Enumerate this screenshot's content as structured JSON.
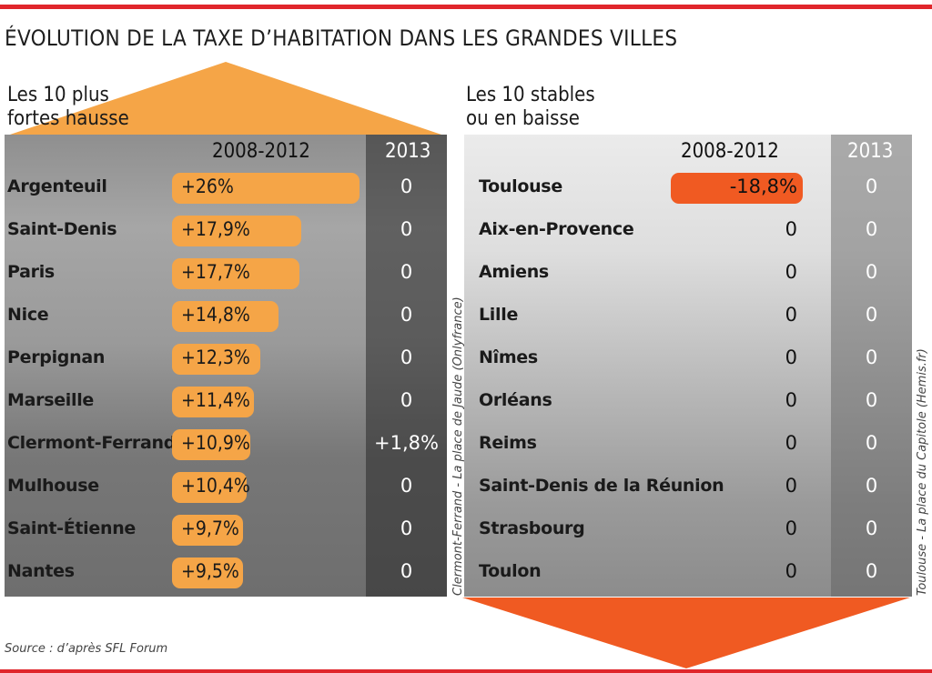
{
  "colors": {
    "accent_red": "#e0262b",
    "increase_orange": "#f5a547",
    "decrease_orange": "#f05a22"
  },
  "title": "ÉVOLUTION DE LA TAXE D’HABITATION DANS LES GRANDES VILLES",
  "source": "Source : d’après SFL Forum",
  "chart_data": [
    {
      "type": "bar",
      "title": "Les 10 plus fortes hausse",
      "columns": [
        "2008-2012",
        "2013"
      ],
      "categories": [
        "Argenteuil",
        "Saint-Denis",
        "Paris",
        "Nice",
        "Perpignan",
        "Marseille",
        "Clermont-Ferrand",
        "Mulhouse",
        "Saint-Étienne",
        "Nantes"
      ],
      "series": [
        {
          "name": "2008-2012",
          "values": [
            26,
            17.9,
            17.7,
            14.8,
            12.3,
            11.4,
            10.9,
            10.4,
            9.7,
            9.5
          ],
          "labels": [
            "+26%",
            "+17,9%",
            "+17,7%",
            "+14,8%",
            "+12,3%",
            "+11,4%",
            "+10,9%",
            "+10,4%",
            "+9,7%",
            "+9,5%"
          ]
        },
        {
          "name": "2013",
          "values": [
            0,
            0,
            0,
            0,
            0,
            0,
            1.8,
            0,
            0,
            0
          ],
          "labels": [
            "0",
            "0",
            "0",
            "0",
            "0",
            "0",
            "+1,8%",
            "0",
            "0",
            "0"
          ]
        }
      ],
      "unit": "%",
      "photo_credit": "Clermont-Ferrand - La place de Jaude (Onlyfrance)"
    },
    {
      "type": "bar",
      "title": "Les 10 stables ou en baisse",
      "columns": [
        "2008-2012",
        "2013"
      ],
      "categories": [
        "Toulouse",
        "Aix-en-Provence",
        "Amiens",
        "Lille",
        "Nîmes",
        "Orléans",
        "Reims",
        "Saint-Denis de la Réunion",
        "Strasbourg",
        "Toulon"
      ],
      "series": [
        {
          "name": "2008-2012",
          "values": [
            -18.8,
            0,
            0,
            0,
            0,
            0,
            0,
            0,
            0,
            0
          ],
          "labels": [
            "-18,8%",
            "0",
            "0",
            "0",
            "0",
            "0",
            "0",
            "0",
            "0",
            "0"
          ]
        },
        {
          "name": "2013",
          "values": [
            0,
            0,
            0,
            0,
            0,
            0,
            0,
            0,
            0,
            0
          ],
          "labels": [
            "0",
            "0",
            "0",
            "0",
            "0",
            "0",
            "0",
            "0",
            "0",
            "0"
          ]
        }
      ],
      "unit": "%",
      "photo_credit": "Toulouse - La place du Capitole (Hemis.fr)"
    }
  ],
  "left": {
    "subtitle_line1": "Les 10 plus",
    "subtitle_line2": "fortes hausse"
  },
  "right": {
    "subtitle_line1": "Les 10 stables",
    "subtitle_line2": "ou en baisse"
  }
}
